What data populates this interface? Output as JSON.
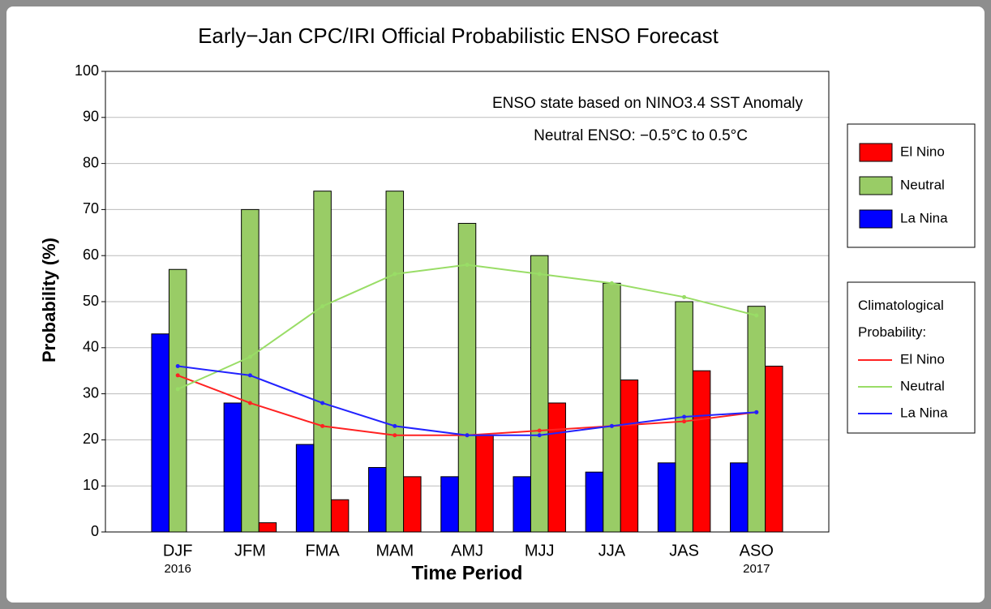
{
  "chart_data": {
    "type": "bar",
    "title": "Early−Jan CPC/IRI Official Probabilistic ENSO Forecast",
    "xlabel": "Time Period",
    "ylabel": "Probability (%)",
    "annotations": [
      "ENSO state based on NINO3.4 SST Anomaly",
      "Neutral ENSO: −0.5°C to 0.5°C"
    ],
    "categories": [
      "DJF",
      "JFM",
      "FMA",
      "MAM",
      "AMJ",
      "MJJ",
      "JJA",
      "JAS",
      "ASO"
    ],
    "category_years": [
      "2016",
      null,
      null,
      null,
      null,
      null,
      null,
      null,
      "2017"
    ],
    "series": [
      {
        "name": "El Nino",
        "color": "#ff0000",
        "values": [
          0,
          2,
          7,
          12,
          21,
          28,
          33,
          35,
          36
        ]
      },
      {
        "name": "Neutral",
        "color": "#99cc66",
        "values": [
          57,
          70,
          74,
          74,
          67,
          60,
          54,
          50,
          49
        ]
      },
      {
        "name": "La Nina",
        "color": "#0000ff",
        "values": [
          43,
          28,
          19,
          14,
          12,
          12,
          13,
          15,
          15
        ]
      }
    ],
    "climatology": {
      "title": "Climatological Probability:",
      "series": [
        {
          "name": "El Nino",
          "color": "#ff2222",
          "values": [
            34,
            28,
            23,
            21,
            21,
            22,
            23,
            24,
            26
          ]
        },
        {
          "name": "Neutral",
          "color": "#99dd66",
          "values": [
            31,
            38,
            49,
            56,
            58,
            56,
            54,
            51,
            47
          ]
        },
        {
          "name": "La Nina",
          "color": "#2222ff",
          "values": [
            36,
            34,
            28,
            23,
            21,
            21,
            23,
            25,
            26
          ]
        }
      ]
    },
    "ylim": [
      0,
      100
    ],
    "yticks": [
      0,
      10,
      20,
      30,
      40,
      50,
      60,
      70,
      80,
      90,
      100
    ],
    "grid": true
  }
}
